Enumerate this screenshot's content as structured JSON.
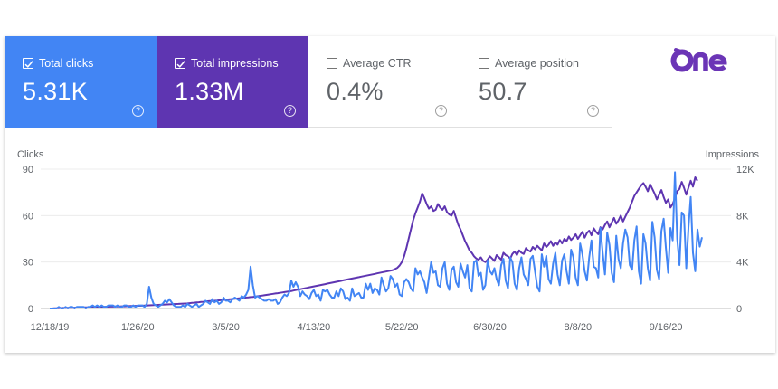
{
  "brand": {
    "logo_text": "One",
    "logo_color": "#6b35b6"
  },
  "metrics": [
    {
      "label": "Total clicks",
      "value": "5.31K",
      "checked": true,
      "color": "#4285f4"
    },
    {
      "label": "Total impressions",
      "value": "1.33M",
      "checked": true,
      "color": "#5e35b1"
    },
    {
      "label": "Average CTR",
      "value": "0.4%",
      "checked": false,
      "color": "#ffffff"
    },
    {
      "label": "Average position",
      "value": "50.7",
      "checked": false,
      "color": "#ffffff"
    }
  ],
  "help_glyph": "?",
  "chart_data": {
    "type": "line",
    "left_axis": {
      "label": "Clicks",
      "ticks": [
        "90",
        "60",
        "30",
        "0"
      ],
      "range": [
        0,
        90
      ]
    },
    "right_axis": {
      "label": "Impressions",
      "ticks": [
        "12K",
        "8K",
        "4K",
        "0"
      ],
      "range": [
        0,
        12000
      ]
    },
    "x_ticks": [
      "12/18/19",
      "1/26/20",
      "3/5/20",
      "4/13/20",
      "5/22/20",
      "6/30/20",
      "8/8/20",
      "9/16/20"
    ],
    "x_days_between_ticks": 39,
    "grid": true,
    "series": [
      {
        "name": "Total clicks",
        "axis": "left",
        "color": "#4285f4",
        "values": [
          0,
          0,
          0,
          0,
          1,
          0,
          0,
          1,
          0,
          1,
          1,
          0,
          1,
          1,
          1,
          1,
          0,
          1,
          1,
          2,
          1,
          2,
          1,
          2,
          1,
          1,
          2,
          2,
          2,
          1,
          2,
          1,
          1,
          2,
          2,
          1,
          1,
          2,
          1,
          2,
          2,
          2,
          1,
          3,
          14,
          7,
          3,
          2,
          1,
          2,
          3,
          5,
          4,
          6,
          4,
          2,
          1,
          1,
          1,
          2,
          1,
          3,
          2,
          1,
          2,
          3,
          1,
          2,
          3,
          5,
          4,
          3,
          6,
          4,
          5,
          3,
          4,
          7,
          5,
          5,
          4,
          6,
          7,
          6,
          5,
          8,
          7,
          9,
          12,
          27,
          15,
          7,
          8,
          7,
          6,
          5,
          5,
          6,
          5,
          5,
          6,
          3,
          4,
          7,
          9,
          8,
          10,
          18,
          14,
          17,
          14,
          8,
          11,
          9,
          8,
          6,
          10,
          12,
          8,
          9,
          5,
          12,
          11,
          12,
          9,
          7,
          7,
          11,
          8,
          13,
          11,
          6,
          7,
          5,
          13,
          8,
          9,
          10,
          7,
          7,
          16,
          12,
          16,
          10,
          13,
          12,
          9,
          20,
          15,
          11,
          13,
          21,
          19,
          14,
          16,
          9,
          8,
          17,
          19,
          17,
          13,
          11,
          26,
          22,
          24,
          20,
          17,
          10,
          20,
          30,
          23,
          24,
          15,
          14,
          26,
          30,
          16,
          12,
          25,
          27,
          17,
          14,
          29,
          24,
          20,
          28,
          13,
          11,
          30,
          31,
          21,
          23,
          12,
          15,
          31,
          24,
          22,
          26,
          19,
          15,
          28,
          32,
          18,
          13,
          33,
          30,
          16,
          12,
          26,
          33,
          22,
          19,
          15,
          32,
          34,
          24,
          14,
          11,
          35,
          27,
          34,
          19,
          16,
          29,
          36,
          22,
          15,
          31,
          35,
          24,
          16,
          38,
          33,
          20,
          15,
          42,
          35,
          24,
          18,
          33,
          44,
          27,
          26,
          20,
          52,
          36,
          22,
          49,
          41,
          23,
          17,
          47,
          32,
          26,
          42,
          51,
          46,
          28,
          25,
          44,
          53,
          24,
          16,
          48,
          42,
          26,
          18,
          56,
          46,
          25,
          19,
          50,
          58,
          39,
          23,
          52,
          44,
          88,
          45,
          28,
          62,
          60,
          26,
          52,
          72,
          36,
          24,
          51,
          40,
          46
        ]
      },
      {
        "name": "Total impressions",
        "axis": "right",
        "color": "#5e35b1",
        "values": [
          0,
          0,
          15,
          25,
          35,
          40,
          45,
          50,
          55,
          60,
          65,
          70,
          75,
          80,
          85,
          90,
          95,
          100,
          105,
          110,
          115,
          120,
          125,
          130,
          140,
          150,
          155,
          160,
          165,
          170,
          175,
          180,
          185,
          190,
          195,
          200,
          210,
          220,
          225,
          230,
          235,
          240,
          250,
          260,
          270,
          280,
          290,
          300,
          310,
          320,
          330,
          340,
          350,
          360,
          370,
          380,
          390,
          400,
          410,
          420,
          430,
          440,
          460,
          480,
          500,
          520,
          540,
          560,
          580,
          600,
          620,
          640,
          650,
          660,
          680,
          700,
          720,
          740,
          760,
          780,
          800,
          820,
          840,
          860,
          880,
          900,
          920,
          940,
          960,
          980,
          1000,
          1020,
          1050,
          1080,
          1110,
          1140,
          1170,
          1200,
          1230,
          1260,
          1290,
          1320,
          1350,
          1380,
          1410,
          1440,
          1470,
          1500,
          1540,
          1580,
          1620,
          1660,
          1700,
          1740,
          1780,
          1820,
          1860,
          1900,
          1940,
          1980,
          2020,
          2060,
          2100,
          2140,
          2180,
          2220,
          2260,
          2300,
          2340,
          2380,
          2420,
          2460,
          2500,
          2540,
          2580,
          2620,
          2660,
          2700,
          2740,
          2780,
          2820,
          2860,
          2900,
          2940,
          2980,
          3020,
          3060,
          3100,
          3140,
          3180,
          3220,
          3260,
          3300,
          3400,
          3500,
          3700,
          4000,
          4500,
          5200,
          6000,
          6800,
          7600,
          8200,
          8700,
          9200,
          9900,
          9500,
          9000,
          8600,
          8800,
          8400,
          8500,
          9000,
          8700,
          8500,
          8800,
          8300,
          8100,
          8000,
          8400,
          7800,
          7200,
          6800,
          6300,
          5800,
          5400,
          5000,
          4800,
          4500,
          4300,
          4200,
          4400,
          4100,
          4000,
          4200,
          4500,
          4300,
          4100,
          4600,
          4400,
          4200,
          4800,
          4600,
          4500,
          4300,
          4700,
          4900,
          4600,
          5000,
          4800,
          4700,
          5200,
          5000,
          4900,
          5300,
          5100,
          5400,
          5200,
          5000,
          5600,
          5300,
          5500,
          5800,
          5400,
          5700,
          5500,
          5900,
          5600,
          6000,
          5800,
          6200,
          5900,
          6100,
          6400,
          6000,
          6300,
          6600,
          6100,
          6500,
          6700,
          6300,
          6900,
          6600,
          6400,
          7000,
          6800,
          7200,
          7500,
          7000,
          7400,
          7800,
          7300,
          7600,
          8000,
          7500,
          7900,
          8300,
          8700,
          9200,
          9700,
          10000,
          10300,
          10600,
          10800,
          10500,
          10100,
          10700,
          10300,
          9900,
          9400,
          9800,
          10200,
          9600,
          9100,
          9400,
          8700,
          9000,
          9500,
          10100,
          10300,
          10900,
          10400,
          9800,
          10400,
          11000,
          10500,
          11300,
          11000
        ]
      }
    ]
  }
}
